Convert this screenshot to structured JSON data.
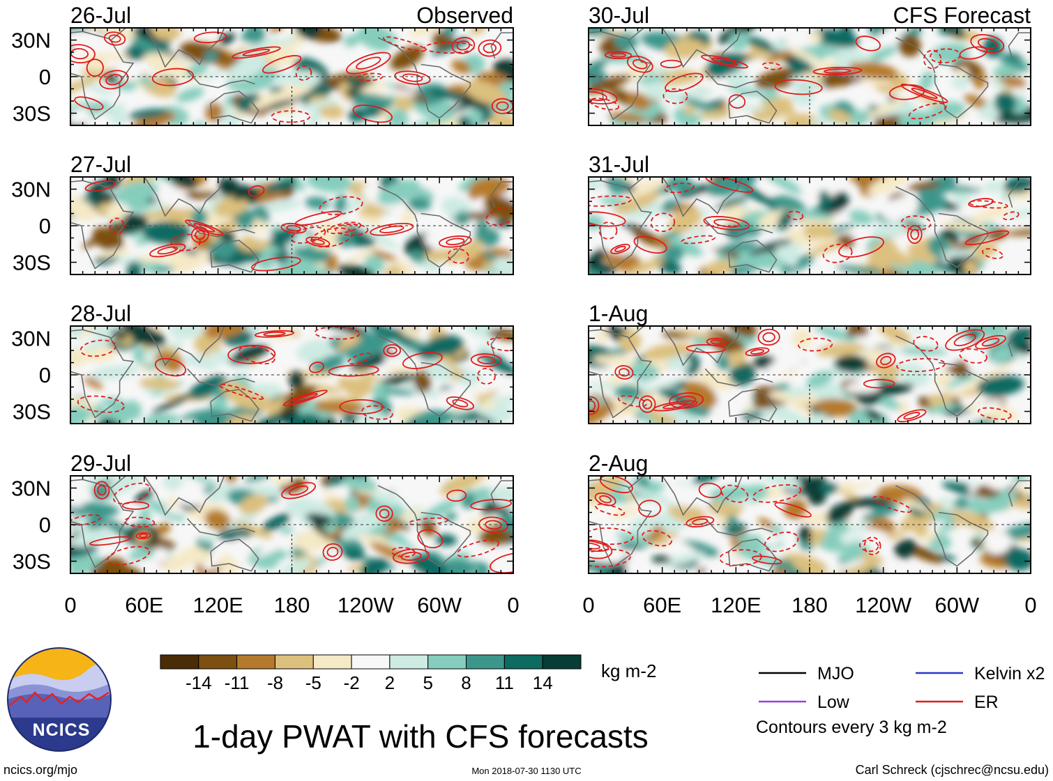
{
  "chart_data": {
    "type": "heatmap",
    "title": "1-day PWAT with CFS forecasts",
    "units": "kg m-2",
    "observed_label": "Observed",
    "forecast_label": "CFS Forecast",
    "lat_ticks": [
      "30N",
      "0",
      "30S"
    ],
    "lon_ticks": [
      "0",
      "60E",
      "120E",
      "180",
      "120W",
      "60W",
      "0"
    ],
    "lat_range": [
      -40,
      40
    ],
    "lon_range": [
      0,
      360
    ],
    "panels": [
      {
        "date": "26-Jul",
        "kind": "observed"
      },
      {
        "date": "27-Jul",
        "kind": "observed"
      },
      {
        "date": "28-Jul",
        "kind": "observed"
      },
      {
        "date": "29-Jul",
        "kind": "observed"
      },
      {
        "date": "30-Jul",
        "kind": "forecast"
      },
      {
        "date": "31-Jul",
        "kind": "forecast"
      },
      {
        "date": "1-Aug",
        "kind": "forecast"
      },
      {
        "date": "2-Aug",
        "kind": "forecast"
      }
    ],
    "colorbar": {
      "levels": [
        "-14",
        "-11",
        "-8",
        "-5",
        "-2",
        "2",
        "5",
        "8",
        "11",
        "14"
      ],
      "colors": [
        "#4a2c06",
        "#7d4f10",
        "#b57a2c",
        "#dcc07e",
        "#f5e9c6",
        "#f7f7f7",
        "#cdebe3",
        "#86cdbd",
        "#3c968b",
        "#0d6b62",
        "#083d36"
      ]
    },
    "legend": [
      {
        "label": "MJO",
        "color": "#000000"
      },
      {
        "label": "Kelvin x2",
        "color": "#2b36c8"
      },
      {
        "label": "Low",
        "color": "#9b3fd9"
      },
      {
        "label": "ER",
        "color": "#e01b1b"
      }
    ],
    "contour_note": "Contours every 3 kg m-2"
  },
  "footer": {
    "logo_text": "NCICS",
    "site": "ncics.org/mjo",
    "timestamp": "Mon 2018-07-30 1130 UTC",
    "credit": "Carl Schreck (cjschrec@ncsu.edu)"
  },
  "colors": {
    "map_line": "#6b6b6b",
    "contour": "#e01b1b"
  }
}
